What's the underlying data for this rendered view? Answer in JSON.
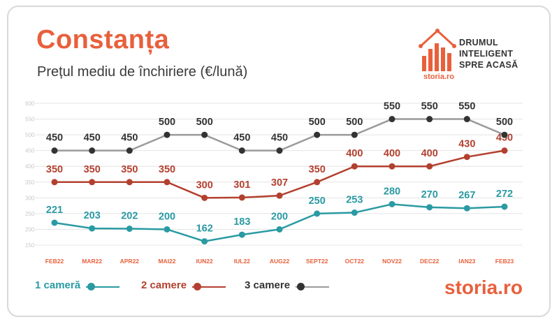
{
  "header": {
    "title": "Constanța",
    "subtitle": "Prețul mediu de închiriere (€/lună)"
  },
  "brand": {
    "tagline": [
      "DRUMUL",
      "INTELIGENT",
      "SPRE ACASĂ"
    ],
    "logo_small": "storia.ro",
    "footer_logo": "storia.ro",
    "accent_color": "#e8603c"
  },
  "chart_data": {
    "type": "line",
    "categories": [
      "FEB22",
      "MAR22",
      "APR22",
      "MAI22",
      "IUN22",
      "IUL22",
      "AUG22",
      "SEPT22",
      "OCT22",
      "NOV22",
      "DEC22",
      "IAN23",
      "FEB23"
    ],
    "yticks": [
      150,
      200,
      250,
      300,
      350,
      400,
      450,
      500,
      550,
      600
    ],
    "ylim": [
      150,
      600
    ],
    "grid": true,
    "legend_position": "bottom",
    "series": [
      {
        "name": "1 cameră",
        "color": "#2a9aa3",
        "values": [
          221,
          203,
          202,
          200,
          162,
          183,
          200,
          250,
          253,
          280,
          270,
          267,
          272
        ]
      },
      {
        "name": "2 camere",
        "color": "#b3402f",
        "values": [
          350,
          350,
          350,
          350,
          300,
          301,
          307,
          350,
          400,
          400,
          400,
          430,
          450
        ]
      },
      {
        "name": "3 camere",
        "color": "#333333",
        "line_color": "#9a9a9a",
        "values": [
          450,
          450,
          450,
          500,
          500,
          450,
          450,
          500,
          500,
          550,
          550,
          550,
          500
        ]
      }
    ]
  }
}
